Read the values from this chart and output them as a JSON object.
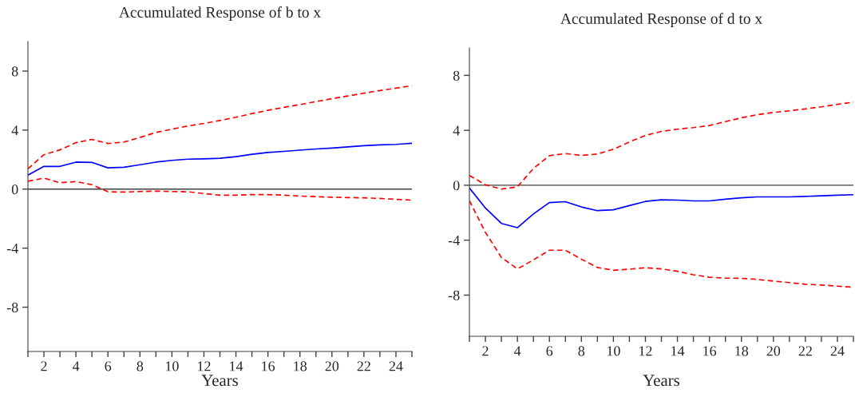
{
  "chart_data": [
    {
      "type": "line",
      "title": "Accumulated Response of b to x",
      "xlabel": "Years",
      "x": [
        1,
        2,
        3,
        4,
        5,
        6,
        7,
        8,
        9,
        10,
        11,
        12,
        13,
        14,
        15,
        16,
        17,
        18,
        19,
        20,
        21,
        22,
        23,
        24,
        25
      ],
      "series": [
        {
          "color": "#0000ff",
          "line_style": "solid",
          "values": [
            0.95,
            1.54,
            1.54,
            1.83,
            1.81,
            1.44,
            1.48,
            1.65,
            1.83,
            1.95,
            2.03,
            2.05,
            2.09,
            2.2,
            2.36,
            2.48,
            2.56,
            2.64,
            2.72,
            2.78,
            2.86,
            2.94,
            3.0,
            3.03,
            3.11
          ]
        },
        {
          "color": "#ff0000",
          "line_style": "dashed",
          "values": [
            1.38,
            2.33,
            2.66,
            3.15,
            3.37,
            3.09,
            3.19,
            3.5,
            3.84,
            4.06,
            4.28,
            4.45,
            4.65,
            4.87,
            5.12,
            5.34,
            5.54,
            5.73,
            5.93,
            6.13,
            6.31,
            6.5,
            6.68,
            6.84,
            7.01
          ]
        },
        {
          "color": "#ff0000",
          "line_style": "dashed",
          "values": [
            0.53,
            0.75,
            0.43,
            0.51,
            0.3,
            -0.18,
            -0.2,
            -0.16,
            -0.14,
            -0.16,
            -0.18,
            -0.3,
            -0.41,
            -0.41,
            -0.37,
            -0.37,
            -0.41,
            -0.47,
            -0.51,
            -0.55,
            -0.57,
            -0.59,
            -0.63,
            -0.69,
            -0.75
          ]
        }
      ],
      "xlim": [
        1,
        25
      ],
      "xticks": [
        {
          "value": 1,
          "label": null
        },
        2,
        {
          "value": 3,
          "label": null
        },
        4,
        {
          "value": 5,
          "label": null
        },
        6,
        {
          "value": 7,
          "label": null
        },
        8,
        {
          "value": 9,
          "label": null
        },
        10,
        {
          "value": 11,
          "label": null
        },
        12,
        {
          "value": 13,
          "label": null
        },
        14,
        {
          "value": 15,
          "label": null
        },
        16,
        {
          "value": 17,
          "label": null
        },
        18,
        {
          "value": 19,
          "label": null
        },
        20,
        {
          "value": 21,
          "label": null
        },
        22,
        {
          "value": 23,
          "label": null
        },
        24,
        {
          "value": 25,
          "label": null
        }
      ],
      "ylim": [
        -11,
        10
      ],
      "yticks": [
        -8,
        -4,
        0,
        4,
        8
      ],
      "ref_lines": [
        {
          "axis": "y",
          "value": 0,
          "color": "#404040"
        }
      ],
      "grid": false,
      "legend": false
    },
    {
      "type": "line",
      "title": "Accumulated Response of d to x",
      "xlabel": "Years",
      "x": [
        1,
        2,
        3,
        4,
        5,
        6,
        7,
        8,
        9,
        10,
        11,
        12,
        13,
        14,
        15,
        16,
        17,
        18,
        19,
        20,
        21,
        22,
        23,
        24,
        25
      ],
      "series": [
        {
          "color": "#0000ff",
          "line_style": "solid",
          "values": [
            -0.2,
            -1.66,
            -2.78,
            -3.09,
            -2.09,
            -1.26,
            -1.2,
            -1.58,
            -1.85,
            -1.79,
            -1.48,
            -1.18,
            -1.06,
            -1.08,
            -1.14,
            -1.14,
            -1.02,
            -0.91,
            -0.85,
            -0.85,
            -0.85,
            -0.81,
            -0.77,
            -0.73,
            -0.69
          ]
        },
        {
          "color": "#ff0000",
          "line_style": "dashed",
          "values": [
            0.71,
            0.04,
            -0.28,
            -0.12,
            1.22,
            2.15,
            2.31,
            2.17,
            2.27,
            2.62,
            3.15,
            3.63,
            3.92,
            4.08,
            4.2,
            4.35,
            4.63,
            4.91,
            5.14,
            5.3,
            5.42,
            5.56,
            5.71,
            5.89,
            6.05
          ]
        },
        {
          "color": "#ff0000",
          "line_style": "dashed",
          "values": [
            -1.12,
            -3.43,
            -5.26,
            -6.09,
            -5.44,
            -4.73,
            -4.73,
            -5.38,
            -5.99,
            -6.19,
            -6.11,
            -6.01,
            -6.09,
            -6.27,
            -6.52,
            -6.7,
            -6.76,
            -6.78,
            -6.86,
            -6.98,
            -7.09,
            -7.21,
            -7.27,
            -7.35,
            -7.43
          ]
        }
      ],
      "xlim": [
        1,
        25
      ],
      "xticks": [
        {
          "value": 1,
          "label": null
        },
        2,
        {
          "value": 3,
          "label": null
        },
        4,
        {
          "value": 5,
          "label": null
        },
        6,
        {
          "value": 7,
          "label": null
        },
        8,
        {
          "value": 9,
          "label": null
        },
        10,
        {
          "value": 11,
          "label": null
        },
        12,
        {
          "value": 13,
          "label": null
        },
        14,
        {
          "value": 15,
          "label": null
        },
        16,
        {
          "value": 17,
          "label": null
        },
        18,
        {
          "value": 19,
          "label": null
        },
        20,
        {
          "value": 21,
          "label": null
        },
        22,
        {
          "value": 23,
          "label": null
        },
        24,
        {
          "value": 25,
          "label": null
        }
      ],
      "ylim": [
        -11,
        10
      ],
      "yticks": [
        -8,
        -4,
        0,
        4,
        8
      ],
      "ref_lines": [
        {
          "axis": "y",
          "value": 0,
          "color": "#404040"
        }
      ],
      "grid": false,
      "legend": false
    }
  ]
}
